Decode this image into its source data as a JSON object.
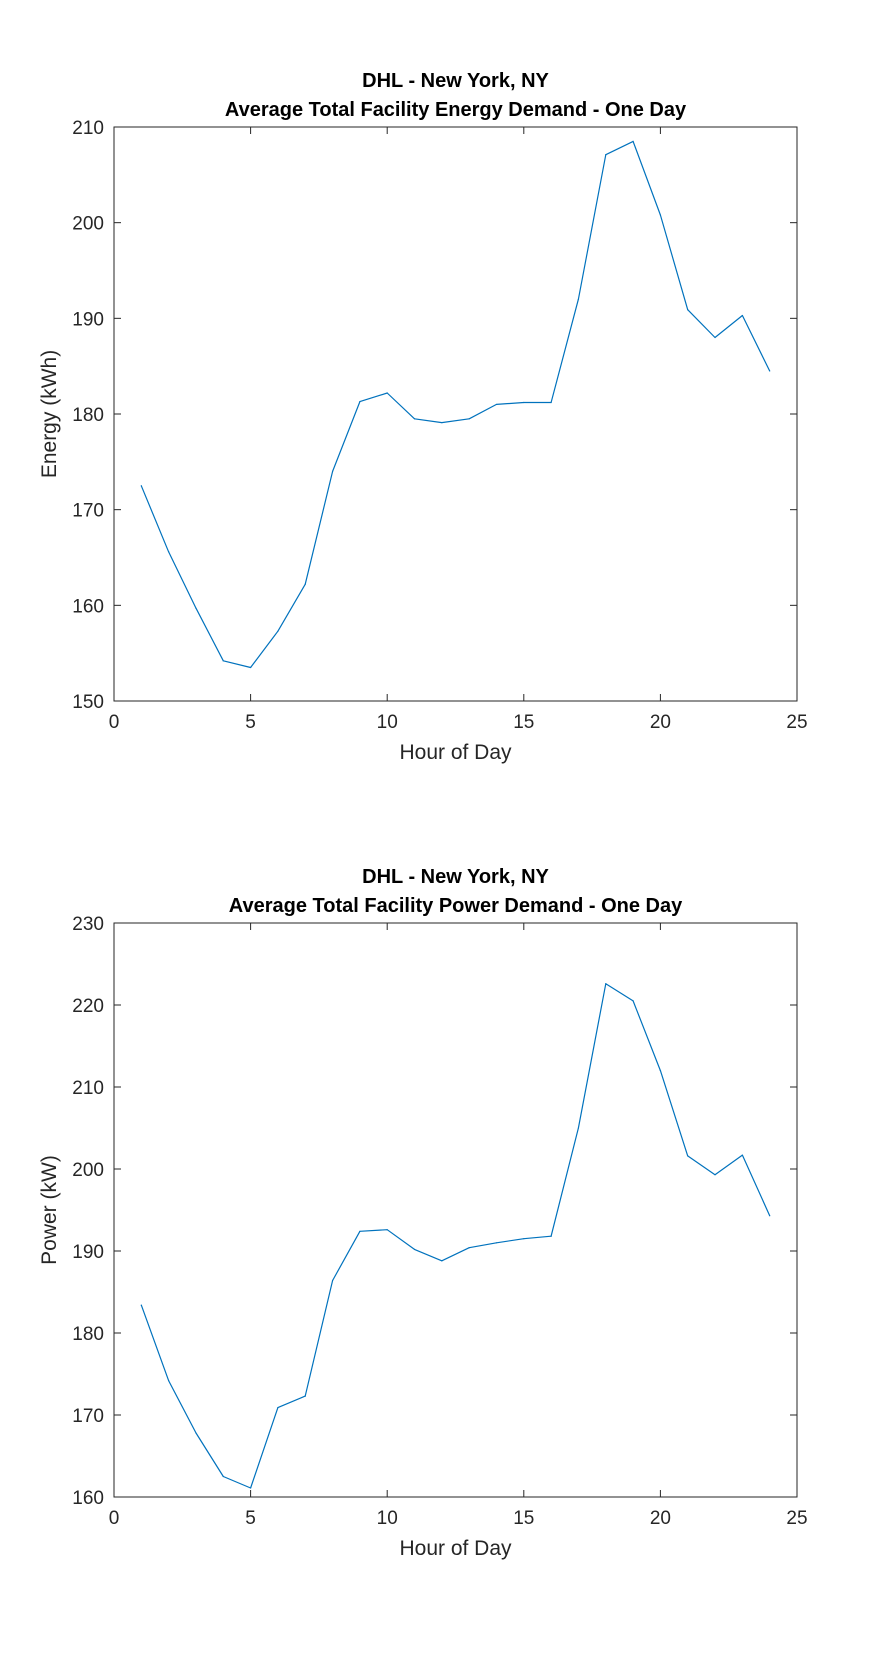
{
  "chart_data": [
    {
      "type": "line",
      "title": "DHL - New York, NY",
      "subtitle": "Average Total Facility Energy Demand - One Day",
      "xlabel": "Hour of Day",
      "ylabel": "Energy (kWh)",
      "xlim": [
        0,
        25
      ],
      "ylim": [
        150,
        210
      ],
      "xticks": [
        0,
        5,
        10,
        15,
        20,
        25
      ],
      "yticks": [
        150,
        160,
        170,
        180,
        190,
        200,
        210
      ],
      "grid": false,
      "line_color": "#0072BD",
      "x": [
        1,
        2,
        3,
        4,
        5,
        6,
        7,
        8,
        9,
        10,
        11,
        12,
        13,
        14,
        15,
        16,
        17,
        18,
        19,
        20,
        21,
        22,
        23,
        24
      ],
      "values": [
        172.5,
        165.6,
        159.7,
        154.2,
        153.5,
        157.3,
        162.2,
        174.0,
        181.3,
        182.2,
        179.5,
        179.1,
        179.5,
        181.0,
        181.2,
        181.2,
        192.0,
        207.1,
        208.5,
        200.8,
        190.9,
        188.0,
        190.3,
        184.5
      ]
    },
    {
      "type": "line",
      "title": "DHL - New York, NY",
      "subtitle": "Average Total Facility Power Demand - One Day",
      "xlabel": "Hour of Day",
      "ylabel": "Power (kW)",
      "xlim": [
        0,
        25
      ],
      "ylim": [
        160,
        230
      ],
      "xticks": [
        0,
        5,
        10,
        15,
        20,
        25
      ],
      "yticks": [
        160,
        170,
        180,
        190,
        200,
        210,
        220,
        230
      ],
      "grid": false,
      "line_color": "#0072BD",
      "x": [
        1,
        2,
        3,
        4,
        5,
        6,
        7,
        8,
        9,
        10,
        11,
        12,
        13,
        14,
        15,
        16,
        17,
        18,
        19,
        20,
        21,
        22,
        23,
        24
      ],
      "values": [
        183.4,
        174.2,
        167.8,
        162.5,
        161.1,
        170.9,
        172.3,
        186.4,
        192.4,
        192.6,
        190.2,
        188.8,
        190.4,
        191.0,
        191.5,
        191.8,
        205.0,
        222.6,
        220.5,
        212.0,
        201.6,
        199.3,
        201.7,
        194.3
      ]
    }
  ]
}
